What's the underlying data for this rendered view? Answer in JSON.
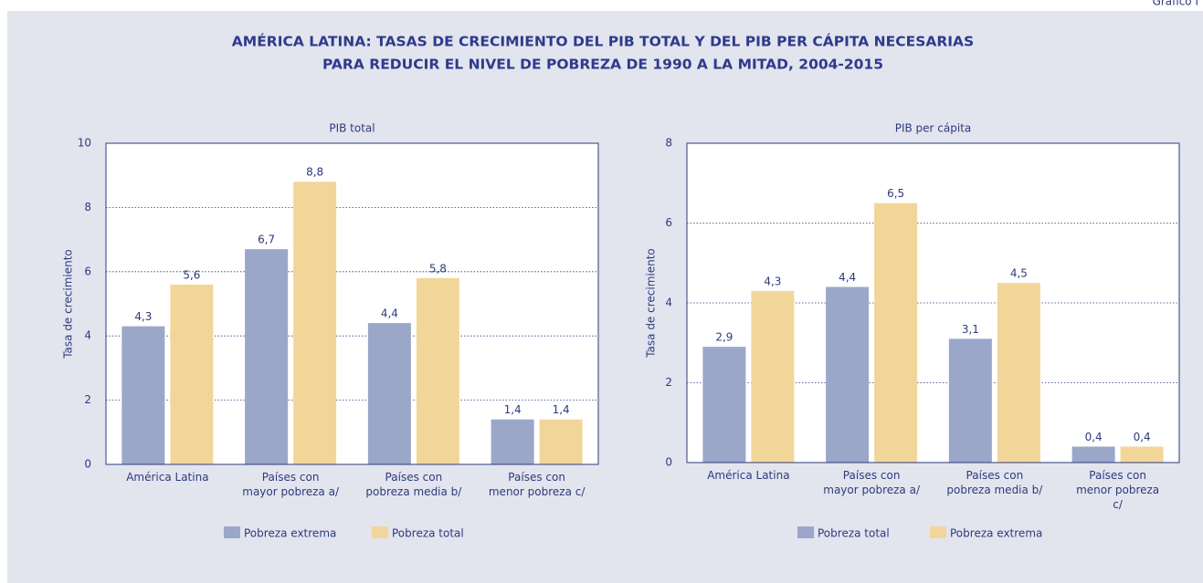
{
  "corner_label": "Gráfico I",
  "title_lines": [
    "AMÉRICA LATINA: TASAS DE CRECIMIENTO DEL PIB TOTAL Y DEL PIB PER CÁPITA NECESARIAS",
    "PARA REDUCIR EL NIVEL DE POBREZA DE 1990 A LA MITAD, 2004-2015"
  ],
  "chart_data": [
    {
      "type": "bar",
      "title": "PIB total",
      "y_label": "Tasa de crecimiento",
      "categories": [
        "América Latina",
        "Países con\nmayor pobreza a/",
        "Países con\npobreza media b/",
        "Países con\nmenor pobreza c/"
      ],
      "series": [
        {
          "name": "Pobreza extrema",
          "color": "#9ba7c9",
          "values": [
            4.3,
            6.7,
            4.4,
            1.4
          ],
          "value_labels": [
            "4,3",
            "6,7",
            "4,4",
            "1,4"
          ]
        },
        {
          "name": "Pobreza total",
          "color": "#f2d699",
          "values": [
            5.6,
            8.8,
            5.8,
            1.4
          ],
          "value_labels": [
            "5,6",
            "8,8",
            "5,8",
            "1,4"
          ]
        }
      ],
      "ylim": [
        0,
        10
      ],
      "yticks": [
        0,
        2,
        4,
        6,
        8,
        10
      ],
      "grid": true,
      "legend": "bottom"
    },
    {
      "type": "bar",
      "title": "PIB per cápita",
      "y_label": "Tasa de crecimiento",
      "categories": [
        "América Latina",
        "Países con\nmayor pobreza a/",
        "Países con\npobreza media b/",
        "Países con\nmenor pobreza c/"
      ],
      "series": [
        {
          "name": "Pobreza total",
          "color": "#9ba7c9",
          "values": [
            2.9,
            4.4,
            3.1,
            0.4
          ],
          "value_labels": [
            "2,9",
            "4,4",
            "3,1",
            "0,4"
          ]
        },
        {
          "name": "Pobreza extrema",
          "color": "#f2d699",
          "values": [
            4.3,
            6.5,
            4.5,
            0.4
          ],
          "value_labels": [
            "4,3",
            "6,5",
            "4,5",
            "0,4"
          ]
        }
      ],
      "ylim": [
        0,
        8
      ],
      "yticks": [
        0,
        2,
        4,
        6,
        8
      ],
      "grid": true,
      "legend": "bottom"
    }
  ]
}
